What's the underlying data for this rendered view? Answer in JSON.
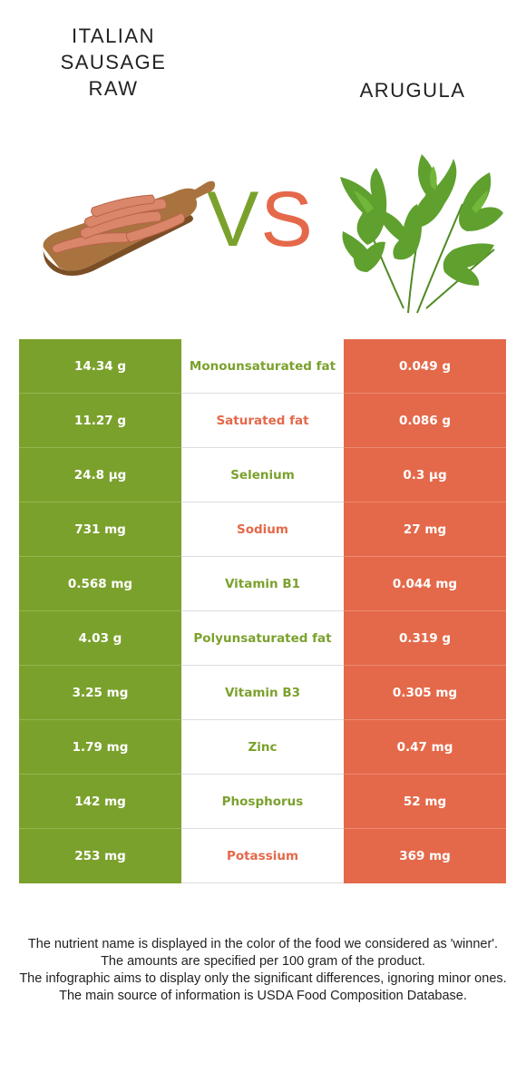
{
  "food_left": {
    "title_lines": [
      "ITALIAN",
      "SAUSAGE",
      "RAW"
    ]
  },
  "food_right": {
    "title": "ARUGULA"
  },
  "vs": {
    "v": "V",
    "s": "S"
  },
  "colors": {
    "left": "#7ba12d",
    "right": "#e4694a"
  },
  "rows": [
    {
      "left": "14.34 g",
      "nutrient": "Monounsaturated fat",
      "right": "0.049 g",
      "winner": "left"
    },
    {
      "left": "11.27 g",
      "nutrient": "Saturated fat",
      "right": "0.086 g",
      "winner": "right"
    },
    {
      "left": "24.8 µg",
      "nutrient": "Selenium",
      "right": "0.3 µg",
      "winner": "left"
    },
    {
      "left": "731 mg",
      "nutrient": "Sodium",
      "right": "27 mg",
      "winner": "right"
    },
    {
      "left": "0.568 mg",
      "nutrient": "Vitamin B1",
      "right": "0.044 mg",
      "winner": "left"
    },
    {
      "left": "4.03 g",
      "nutrient": "Polyunsaturated fat",
      "right": "0.319 g",
      "winner": "left"
    },
    {
      "left": "3.25 mg",
      "nutrient": "Vitamin B3",
      "right": "0.305 mg",
      "winner": "left"
    },
    {
      "left": "1.79 mg",
      "nutrient": "Zinc",
      "right": "0.47 mg",
      "winner": "left"
    },
    {
      "left": "142 mg",
      "nutrient": "Phosphorus",
      "right": "52 mg",
      "winner": "left"
    },
    {
      "left": "253 mg",
      "nutrient": "Potassium",
      "right": "369 mg",
      "winner": "right"
    }
  ],
  "footnote": [
    "The nutrient name is displayed in the color of the food we considered as 'winner'.",
    "The amounts are specified per 100 gram of the product.",
    "The infographic aims to display only the significant differences, ignoring minor ones.",
    "The main source of information is USDA Food Composition Database."
  ]
}
